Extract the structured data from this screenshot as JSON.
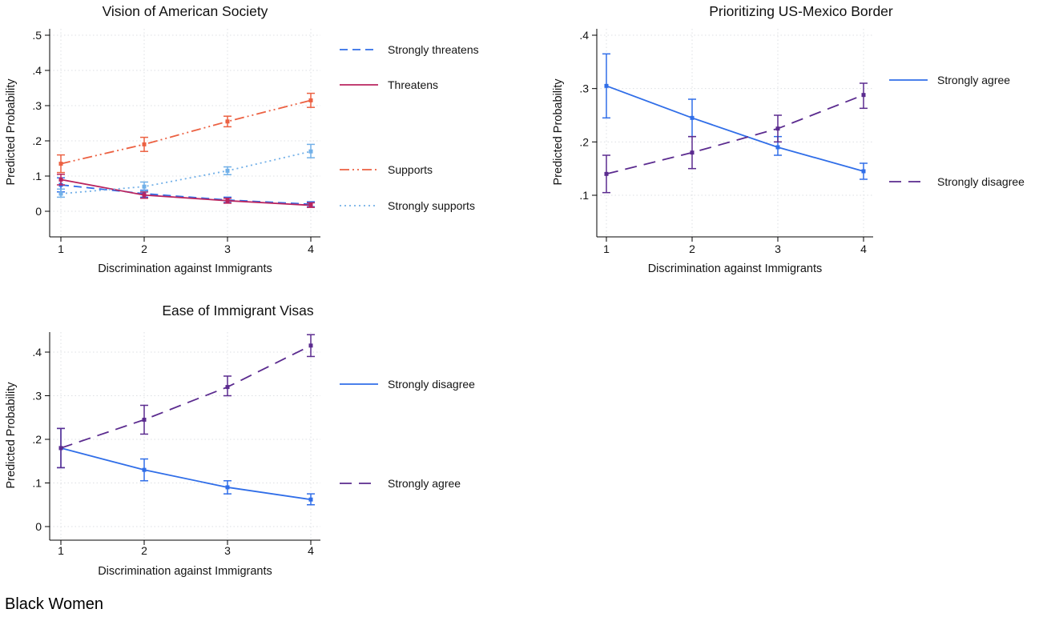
{
  "footer": "Black Women",
  "chart_data": [
    {
      "type": "line",
      "title": "Vision of American Society",
      "xlabel": "Discrimination against Immigrants",
      "ylabel": "Predicted Probability",
      "x": [
        1,
        2,
        3,
        4
      ],
      "xtick_labels": [
        "1",
        "2",
        "3",
        "4"
      ],
      "ylim": [
        0,
        0.5
      ],
      "yticks": [
        0,
        0.1,
        0.2,
        0.3,
        0.4,
        0.5
      ],
      "ytick_labels": [
        "0",
        ".1",
        ".2",
        ".3",
        ".4",
        ".5"
      ],
      "grid": true,
      "legend_position": "right",
      "error_bars": true,
      "series": [
        {
          "name": "Strongly threatens",
          "color": "#306ee8",
          "dash": "dash",
          "values": [
            0.075,
            0.05,
            0.032,
            0.02
          ],
          "ci_low": [
            0.055,
            0.04,
            0.025,
            0.013
          ],
          "ci_high": [
            0.095,
            0.06,
            0.04,
            0.027
          ]
        },
        {
          "name": "Threatens",
          "color": "#b9245f",
          "dash": "solid",
          "values": [
            0.09,
            0.046,
            0.03,
            0.017
          ],
          "ci_low": [
            0.075,
            0.037,
            0.023,
            0.011
          ],
          "ci_high": [
            0.105,
            0.055,
            0.037,
            0.024
          ]
        },
        {
          "name": "Supports",
          "color": "#ec6142",
          "dash": "dash-dot-dot",
          "values": [
            0.135,
            0.19,
            0.255,
            0.315
          ],
          "ci_low": [
            0.11,
            0.17,
            0.24,
            0.295
          ],
          "ci_high": [
            0.16,
            0.21,
            0.27,
            0.335
          ]
        },
        {
          "name": "Strongly supports",
          "color": "#72b0e8",
          "dash": "dot",
          "values": [
            0.05,
            0.07,
            0.115,
            0.17
          ],
          "ci_low": [
            0.04,
            0.058,
            0.104,
            0.152
          ],
          "ci_high": [
            0.063,
            0.083,
            0.126,
            0.19
          ]
        }
      ]
    },
    {
      "type": "line",
      "title": "Prioritizing US-Mexico Border",
      "xlabel": "Discrimination against Immigrants",
      "ylabel": "Predicted Probability",
      "x": [
        1,
        2,
        3,
        4
      ],
      "xtick_labels": [
        "1",
        "2",
        "3",
        "4"
      ],
      "ylim": [
        0.1,
        0.4
      ],
      "yticks": [
        0.1,
        0.2,
        0.3,
        0.4
      ],
      "ytick_labels": [
        ".1",
        ".2",
        ".3",
        ".4"
      ],
      "grid": true,
      "legend_position": "right",
      "error_bars": true,
      "series": [
        {
          "name": "Strongly agree",
          "color": "#306ee8",
          "dash": "solid",
          "values": [
            0.305,
            0.245,
            0.19,
            0.145
          ],
          "ci_low": [
            0.245,
            0.21,
            0.175,
            0.13
          ],
          "ci_high": [
            0.365,
            0.28,
            0.21,
            0.16
          ]
        },
        {
          "name": "Strongly disagree",
          "color": "#5b2b8f",
          "dash": "long-dash",
          "values": [
            0.14,
            0.18,
            0.225,
            0.288
          ],
          "ci_low": [
            0.105,
            0.15,
            0.2,
            0.263
          ],
          "ci_high": [
            0.175,
            0.21,
            0.25,
            0.31
          ]
        }
      ]
    },
    {
      "type": "line",
      "title": "Ease of Immigrant Visas",
      "xlabel": "Discrimination against Immigrants",
      "ylabel": "Predicted Probability",
      "x": [
        1,
        2,
        3,
        4
      ],
      "xtick_labels": [
        "1",
        "2",
        "3",
        "4"
      ],
      "ylim": [
        0,
        0.4
      ],
      "yticks": [
        0,
        0.1,
        0.2,
        0.3,
        0.4
      ],
      "ytick_labels": [
        "0",
        ".1",
        ".2",
        ".3",
        ".4"
      ],
      "grid": true,
      "legend_position": "right",
      "error_bars": true,
      "series": [
        {
          "name": "Strongly disagree",
          "color": "#306ee8",
          "dash": "solid",
          "values": [
            0.18,
            0.13,
            0.09,
            0.062
          ],
          "ci_low": [
            0.135,
            0.105,
            0.075,
            0.05
          ],
          "ci_high": [
            0.225,
            0.155,
            0.105,
            0.075
          ]
        },
        {
          "name": "Strongly agree",
          "color": "#5b2b8f",
          "dash": "long-dash",
          "values": [
            0.18,
            0.245,
            0.32,
            0.415
          ],
          "ci_low": [
            0.135,
            0.212,
            0.3,
            0.39
          ],
          "ci_high": [
            0.225,
            0.278,
            0.345,
            0.44
          ]
        }
      ]
    }
  ]
}
